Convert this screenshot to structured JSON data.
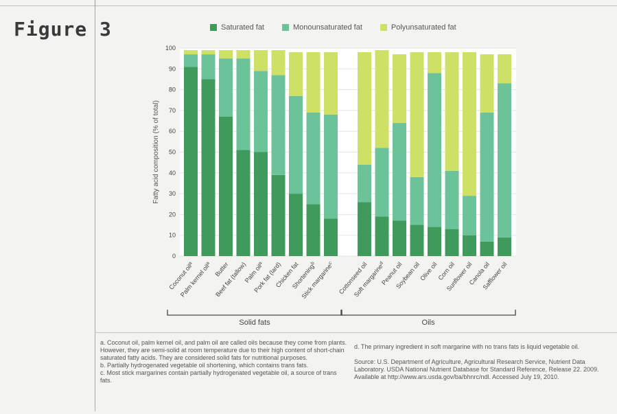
{
  "figure_label": "Figure 3",
  "legend": [
    {
      "label": "Saturated fat",
      "color": "#3f9a5c"
    },
    {
      "label": "Monounsaturated fat",
      "color": "#6cc39a"
    },
    {
      "label": "Polyunsaturated fat",
      "color": "#cfe066"
    }
  ],
  "chart_data": {
    "type": "bar",
    "stacked": true,
    "ylabel": "Fatty acid composition (% of total)",
    "ylim": [
      0,
      100
    ],
    "yticks": [
      0,
      10,
      20,
      30,
      40,
      50,
      60,
      70,
      80,
      90,
      100
    ],
    "groups": [
      {
        "label": "Solid fats",
        "categories": [
          "Coconut oil",
          "Palm kernel oil",
          "Butter",
          "Beef fat (tallow)",
          "Palm oil",
          "Pork fat (lard)",
          "Chicken fat",
          "Shortening",
          "Stick margarine"
        ],
        "category_superscripts": [
          "a",
          "a",
          "",
          "",
          "a",
          "",
          "",
          "b",
          "c"
        ]
      },
      {
        "label": "Oils",
        "categories": [
          "Cottonseed oil",
          "Soft margarine",
          "Peanut oil",
          "Soybean oil",
          "Olive oil",
          "Corn oil",
          "Sunflower oil",
          "Canola oil",
          "Safflower oil"
        ],
        "category_superscripts": [
          "",
          "d",
          "",
          "",
          "",
          "",
          "",
          "",
          ""
        ]
      }
    ],
    "series": [
      {
        "name": "Saturated fat",
        "color": "#3f9a5c",
        "values": [
          91,
          85,
          67,
          51,
          50,
          39,
          30,
          25,
          18,
          26,
          19,
          17,
          15,
          14,
          13,
          10,
          7,
          9
        ]
      },
      {
        "name": "Monounsaturated fat",
        "color": "#6cc39a",
        "values": [
          6,
          12,
          28,
          44,
          39,
          48,
          47,
          44,
          50,
          18,
          33,
          47,
          23,
          74,
          28,
          19,
          62,
          74
        ]
      },
      {
        "name": "Polyunsaturated fat",
        "color": "#cfe066",
        "values": [
          2,
          2,
          4,
          4,
          10,
          12,
          21,
          29,
          30,
          54,
          47,
          33,
          60,
          10,
          57,
          69,
          28,
          14
        ]
      }
    ]
  },
  "footnotes": {
    "a": "a. Coconut oil, palm kernel oil, and palm oil are called oils because they come from plants. However, they are semi-solid at room temperature due to their high content of short-chain saturated fatty acids. They are considered solid fats for nutritional purposes.",
    "b": "b. Partially hydrogenated vegetable oil shortening, which contains trans fats.",
    "c": "c. Most stick margarines contain partially hydrogenated vegetable oil, a source of trans fats.",
    "d": "d. The primary ingredient in soft margarine with no trans fats is liquid vegetable oil.",
    "source": "Source: U.S. Department of Agriculture, Agricultural Research Service, Nutrient Data Laboratory. USDA National Nutrient Database for Standard Reference, Release 22. 2009. Available at http://www.ars.usda.gov/ba/bhnrc/ndl. Accessed July 19, 2010."
  }
}
